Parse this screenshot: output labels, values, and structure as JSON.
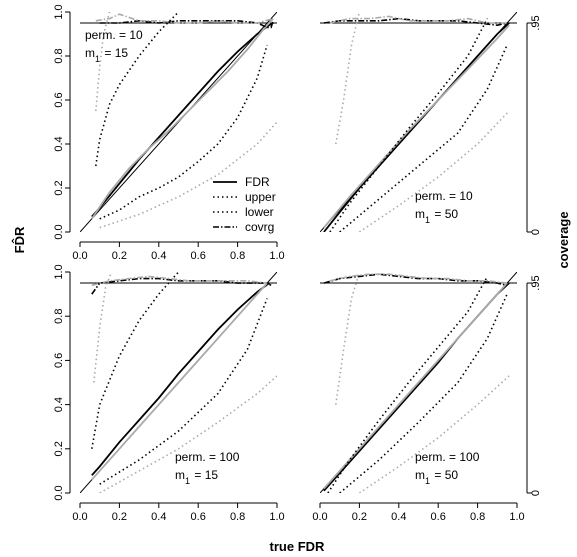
{
  "labels": {
    "xlabel": "true FDR",
    "ylabel": "FD̂R",
    "y2label": "coverage"
  },
  "legend": {
    "placement": "bottom-right of top-left panel",
    "entries": [
      {
        "label": "FDR",
        "style": "solid"
      },
      {
        "label": "upper",
        "style": "dotted"
      },
      {
        "label": "lower",
        "style": "dotted"
      },
      {
        "label": "covrg",
        "style": "dashdot"
      }
    ]
  },
  "chart_data": [
    {
      "type": "line",
      "panel": "top-left",
      "annotation": [
        "perm. = 10",
        "m1 = 15"
      ],
      "xlim": [
        0,
        1
      ],
      "ylim": [
        0,
        1
      ],
      "x_ticks": [
        "0.0",
        "0.2",
        "0.4",
        "0.6",
        "0.8",
        "1.0"
      ],
      "y_ticks": [
        "0.0",
        "0.2",
        "0.4",
        "0.6",
        "0.8",
        "1.0"
      ],
      "series": [
        {
          "name": "FDR",
          "color": "#000000",
          "x": [
            0.06,
            0.1,
            0.2,
            0.3,
            0.4,
            0.5,
            0.6,
            0.7,
            0.8,
            0.9,
            0.96,
            0.98
          ],
          "y": [
            0.07,
            0.11,
            0.22,
            0.33,
            0.43,
            0.53,
            0.63,
            0.73,
            0.82,
            0.9,
            0.94,
            0.95
          ]
        },
        {
          "name": "FDR",
          "color": "#aaaaaa",
          "x": [
            0.06,
            0.15,
            0.25,
            0.35,
            0.45,
            0.55,
            0.65,
            0.75,
            0.85,
            0.93,
            0.98
          ],
          "y": [
            0.06,
            0.18,
            0.29,
            0.38,
            0.46,
            0.55,
            0.64,
            0.73,
            0.83,
            0.92,
            0.97
          ]
        },
        {
          "name": "upper",
          "color": "#000000",
          "x": [
            0.08,
            0.1,
            0.15,
            0.2,
            0.3,
            0.4,
            0.5
          ],
          "y": [
            0.3,
            0.42,
            0.58,
            0.67,
            0.8,
            0.91,
            1.0
          ]
        },
        {
          "name": "upper",
          "color": "#aaaaaa",
          "x": [
            0.08,
            0.1,
            0.12,
            0.15
          ],
          "y": [
            0.55,
            0.75,
            0.9,
            1.0
          ]
        },
        {
          "name": "lower",
          "color": "#000000",
          "x": [
            0.1,
            0.2,
            0.3,
            0.4,
            0.5,
            0.6,
            0.7,
            0.8,
            0.9,
            0.95
          ],
          "y": [
            0.06,
            0.1,
            0.16,
            0.2,
            0.25,
            0.32,
            0.4,
            0.52,
            0.7,
            0.85
          ]
        },
        {
          "name": "lower",
          "color": "#aaaaaa",
          "x": [
            0.1,
            0.3,
            0.5,
            0.7,
            0.9,
            1.0
          ],
          "y": [
            0.02,
            0.08,
            0.16,
            0.26,
            0.4,
            0.5
          ]
        },
        {
          "name": "covrg",
          "color": "#000000",
          "x": [
            0.1,
            0.2,
            0.3,
            0.4,
            0.5,
            0.6,
            0.7,
            0.8,
            0.9,
            0.95,
            0.97,
            0.98
          ],
          "y": [
            0.95,
            0.95,
            0.96,
            0.95,
            0.96,
            0.96,
            0.96,
            0.96,
            0.95,
            0.93,
            0.93,
            0.96
          ]
        },
        {
          "name": "covrg",
          "color": "#aaaaaa",
          "x": [
            0.08,
            0.15,
            0.2,
            0.3,
            0.4,
            0.5,
            0.6,
            0.7,
            0.8,
            0.9,
            0.98
          ],
          "y": [
            0.96,
            0.97,
            0.99,
            0.96,
            0.96,
            0.95,
            0.95,
            0.96,
            0.95,
            0.95,
            0.97
          ]
        }
      ]
    },
    {
      "type": "line",
      "panel": "top-right",
      "annotation": [
        "perm. = 10",
        "m1 = 50"
      ],
      "xlim": [
        0,
        1
      ],
      "ylim": [
        0,
        1
      ],
      "y2_ticks": [
        ".95",
        "0"
      ],
      "series": [
        {
          "name": "FDR",
          "color": "#000000",
          "x": [
            0.02,
            0.1,
            0.2,
            0.3,
            0.4,
            0.5,
            0.6,
            0.7,
            0.8,
            0.9,
            0.96
          ],
          "y": [
            0.0,
            0.09,
            0.2,
            0.3,
            0.4,
            0.5,
            0.6,
            0.7,
            0.8,
            0.9,
            0.95
          ]
        },
        {
          "name": "FDR",
          "color": "#aaaaaa",
          "x": [
            0.02,
            0.15,
            0.3,
            0.45,
            0.6,
            0.75,
            0.9,
            0.96
          ],
          "y": [
            0.02,
            0.16,
            0.31,
            0.46,
            0.6,
            0.74,
            0.88,
            0.94
          ]
        },
        {
          "name": "upper",
          "color": "#000000",
          "x": [
            0.05,
            0.15,
            0.3,
            0.45,
            0.6,
            0.75,
            0.85
          ],
          "y": [
            0.0,
            0.13,
            0.3,
            0.47,
            0.63,
            0.8,
            0.97
          ]
        },
        {
          "name": "upper",
          "color": "#aaaaaa",
          "x": [
            0.08,
            0.12,
            0.16,
            0.2
          ],
          "y": [
            0.4,
            0.6,
            0.85,
            1.0
          ]
        },
        {
          "name": "lower",
          "color": "#000000",
          "x": [
            0.1,
            0.3,
            0.5,
            0.7,
            0.85,
            0.95
          ],
          "y": [
            0.0,
            0.15,
            0.3,
            0.45,
            0.65,
            0.85
          ]
        },
        {
          "name": "lower",
          "color": "#aaaaaa",
          "x": [
            0.2,
            0.4,
            0.6,
            0.8,
            0.96
          ],
          "y": [
            0.0,
            0.12,
            0.25,
            0.4,
            0.55
          ]
        },
        {
          "name": "covrg",
          "color": "#000000",
          "x": [
            0.02,
            0.1,
            0.2,
            0.3,
            0.4,
            0.5,
            0.6,
            0.7,
            0.8,
            0.9,
            0.95
          ],
          "y": [
            0.95,
            0.96,
            0.96,
            0.96,
            0.97,
            0.96,
            0.96,
            0.96,
            0.95,
            0.94,
            0.95
          ]
        },
        {
          "name": "covrg",
          "color": "#aaaaaa",
          "x": [
            0.05,
            0.15,
            0.25,
            0.35,
            0.45,
            0.55,
            0.65,
            0.75,
            0.85,
            0.95
          ],
          "y": [
            0.95,
            0.97,
            0.97,
            0.98,
            0.96,
            0.96,
            0.96,
            0.97,
            0.95,
            0.95
          ]
        }
      ]
    },
    {
      "type": "line",
      "panel": "bottom-left",
      "annotation": [
        "perm. = 100",
        "m1 = 15"
      ],
      "xlim": [
        0,
        1
      ],
      "ylim": [
        0,
        1
      ],
      "x_ticks": [
        "0.0",
        "0.2",
        "0.4",
        "0.6",
        "0.8",
        "1.0"
      ],
      "y_ticks": [
        "0.0",
        "0.2",
        "0.4",
        "0.6",
        "0.8",
        "1.0"
      ],
      "series": [
        {
          "name": "FDR",
          "color": "#000000",
          "x": [
            0.06,
            0.1,
            0.2,
            0.3,
            0.4,
            0.5,
            0.6,
            0.7,
            0.8,
            0.9,
            0.96
          ],
          "y": [
            0.08,
            0.12,
            0.23,
            0.33,
            0.43,
            0.54,
            0.64,
            0.74,
            0.83,
            0.91,
            0.95
          ]
        },
        {
          "name": "FDR",
          "color": "#aaaaaa",
          "x": [
            0.06,
            0.2,
            0.35,
            0.5,
            0.65,
            0.8,
            0.95
          ],
          "y": [
            0.06,
            0.2,
            0.35,
            0.5,
            0.65,
            0.8,
            0.95
          ]
        },
        {
          "name": "upper",
          "color": "#000000",
          "x": [
            0.06,
            0.1,
            0.2,
            0.3,
            0.4,
            0.5
          ],
          "y": [
            0.2,
            0.4,
            0.62,
            0.78,
            0.9,
            1.0
          ]
        },
        {
          "name": "upper",
          "color": "#aaaaaa",
          "x": [
            0.07,
            0.1,
            0.13,
            0.16
          ],
          "y": [
            0.5,
            0.75,
            0.93,
            1.0
          ]
        },
        {
          "name": "lower",
          "color": "#000000",
          "x": [
            0.1,
            0.3,
            0.5,
            0.7,
            0.85,
            0.95
          ],
          "y": [
            0.04,
            0.15,
            0.28,
            0.45,
            0.65,
            0.88
          ]
        },
        {
          "name": "lower",
          "color": "#aaaaaa",
          "x": [
            0.1,
            0.3,
            0.5,
            0.7,
            0.9,
            1.0
          ],
          "y": [
            0.0,
            0.1,
            0.2,
            0.32,
            0.45,
            0.53
          ]
        },
        {
          "name": "covrg",
          "color": "#000000",
          "x": [
            0.06,
            0.1,
            0.2,
            0.3,
            0.4,
            0.5,
            0.6,
            0.7,
            0.8,
            0.9,
            0.95,
            0.97
          ],
          "y": [
            0.9,
            0.95,
            0.96,
            0.97,
            0.97,
            0.96,
            0.96,
            0.96,
            0.95,
            0.95,
            0.95,
            0.94
          ]
        },
        {
          "name": "covrg",
          "color": "#aaaaaa",
          "x": [
            0.06,
            0.15,
            0.25,
            0.35,
            0.45,
            0.55,
            0.65,
            0.75,
            0.85,
            0.95
          ],
          "y": [
            0.94,
            0.96,
            0.97,
            0.98,
            0.97,
            0.96,
            0.96,
            0.96,
            0.96,
            0.95
          ]
        }
      ]
    },
    {
      "type": "line",
      "panel": "bottom-right",
      "annotation": [
        "perm. = 100",
        "m1 = 50"
      ],
      "xlim": [
        0,
        1
      ],
      "ylim": [
        0,
        1
      ],
      "x_ticks": [
        "0.0",
        "0.2",
        "0.4",
        "0.6",
        "0.8",
        "1.0"
      ],
      "y2_ticks": [
        ".95",
        "0"
      ],
      "series": [
        {
          "name": "FDR",
          "color": "#000000",
          "x": [
            0.02,
            0.1,
            0.2,
            0.3,
            0.4,
            0.5,
            0.6,
            0.7,
            0.8,
            0.9,
            0.96
          ],
          "y": [
            0.01,
            0.09,
            0.19,
            0.29,
            0.39,
            0.49,
            0.59,
            0.7,
            0.8,
            0.9,
            0.95
          ]
        },
        {
          "name": "FDR",
          "color": "#aaaaaa",
          "x": [
            0.02,
            0.2,
            0.4,
            0.6,
            0.8,
            0.95
          ],
          "y": [
            0.02,
            0.2,
            0.4,
            0.6,
            0.8,
            0.95
          ]
        },
        {
          "name": "upper",
          "color": "#000000",
          "x": [
            0.04,
            0.15,
            0.3,
            0.45,
            0.6,
            0.75,
            0.85
          ],
          "y": [
            0.0,
            0.15,
            0.33,
            0.5,
            0.66,
            0.82,
            0.98
          ]
        },
        {
          "name": "upper",
          "color": "#aaaaaa",
          "x": [
            0.08,
            0.12,
            0.16,
            0.2
          ],
          "y": [
            0.4,
            0.65,
            0.88,
            1.0
          ]
        },
        {
          "name": "lower",
          "color": "#000000",
          "x": [
            0.1,
            0.3,
            0.5,
            0.7,
            0.85,
            0.95
          ],
          "y": [
            0.0,
            0.15,
            0.32,
            0.5,
            0.7,
            0.9
          ]
        },
        {
          "name": "lower",
          "color": "#aaaaaa",
          "x": [
            0.2,
            0.4,
            0.6,
            0.8,
            0.96
          ],
          "y": [
            0.0,
            0.12,
            0.25,
            0.4,
            0.53
          ]
        },
        {
          "name": "covrg",
          "color": "#000000",
          "x": [
            0.02,
            0.1,
            0.2,
            0.3,
            0.4,
            0.5,
            0.6,
            0.7,
            0.8,
            0.9,
            0.95
          ],
          "y": [
            0.95,
            0.97,
            0.98,
            0.99,
            0.98,
            0.97,
            0.97,
            0.96,
            0.96,
            0.95,
            0.94
          ]
        },
        {
          "name": "covrg",
          "color": "#aaaaaa",
          "x": [
            0.05,
            0.15,
            0.25,
            0.35,
            0.45,
            0.55,
            0.65,
            0.75,
            0.85,
            0.95
          ],
          "y": [
            0.96,
            0.98,
            0.99,
            0.99,
            0.98,
            0.97,
            0.97,
            0.96,
            0.96,
            0.95
          ]
        }
      ]
    }
  ]
}
